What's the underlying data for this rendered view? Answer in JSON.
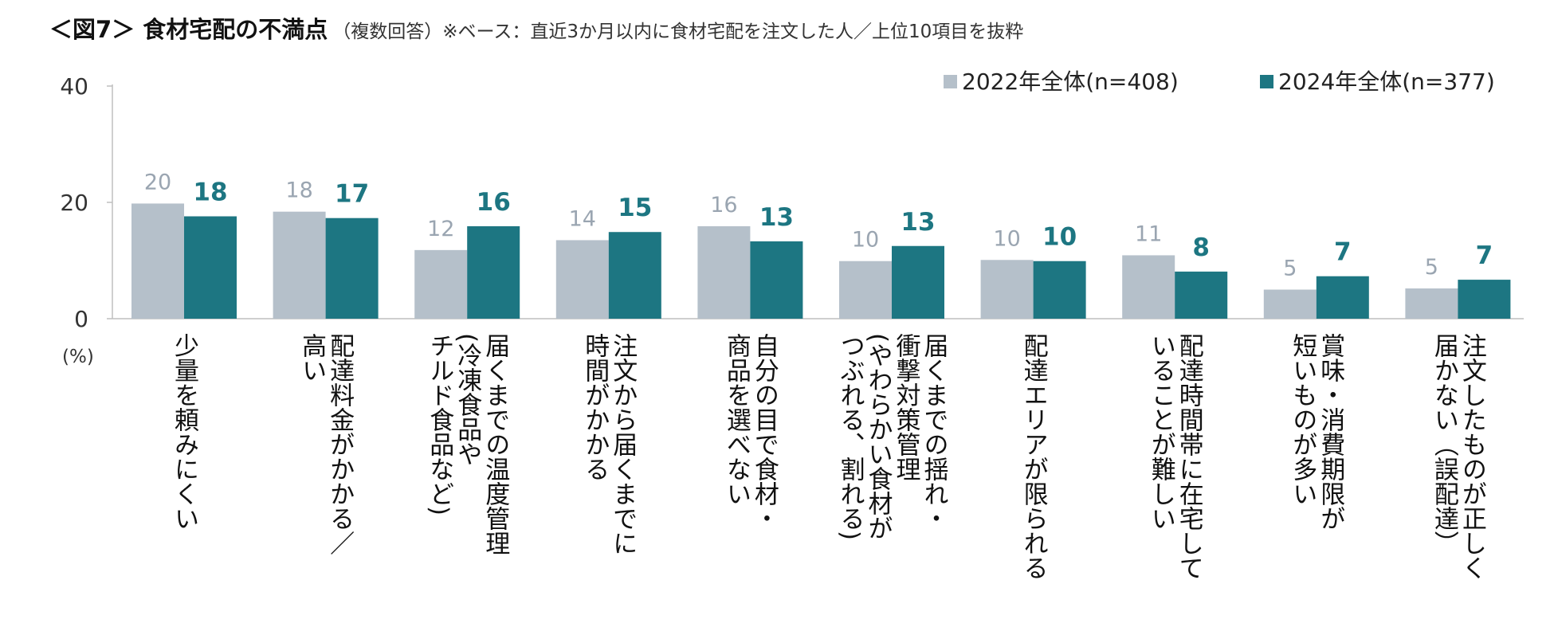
{
  "title": "＜図7＞ 食材宅配の不満点",
  "subtitle": "（複数回答）※ベース：直近3か月以内に食材宅配を注文した人／上位10項目を抜粋",
  "colors": {
    "series_2022": "#b5c0ca",
    "series_2024": "#1d7682"
  },
  "chart_data": {
    "type": "bar",
    "ylim": [
      0,
      40
    ],
    "yticks": [
      0,
      20,
      40
    ],
    "ylabel": "(%)",
    "grid": false,
    "legend": "top-right",
    "categories": [
      [
        "少量を頼みにくい"
      ],
      [
        "配達料金がかかる／",
        "高い"
      ],
      [
        "届くまでの温度管理",
        "(冷凍食品や",
        "チルド食品など)"
      ],
      [
        "注文から届くまでに",
        "時間がかかる"
      ],
      [
        "自分の目で食材・",
        "商品を選べない"
      ],
      [
        "届くまでの揺れ・",
        "衝撃対策管理",
        "(やわらかい食材が",
        "つぶれる、割れる)"
      ],
      [
        "配達エリアが限られる"
      ],
      [
        "配達時間帯に在宅して",
        "いることが難しい"
      ],
      [
        "賞味・消費期限が",
        "短いものが多い"
      ],
      [
        "注文したものが正しく",
        "届かない（誤配達）"
      ]
    ],
    "series": [
      {
        "name": "2022年全体(n=408)",
        "values": [
          20,
          18,
          12,
          14,
          16,
          10,
          10,
          11,
          5,
          5
        ]
      },
      {
        "name": "2024年全体(n=377)",
        "values": [
          18,
          17,
          16,
          15,
          13,
          13,
          10,
          8,
          7,
          7
        ]
      }
    ],
    "bar_values": [
      [
        19.8,
        18.4,
        11.8,
        13.5,
        15.9,
        9.9,
        10.1,
        10.9,
        5.0,
        5.2
      ],
      [
        17.6,
        17.3,
        15.9,
        14.9,
        13.3,
        12.5,
        9.9,
        8.1,
        7.3,
        6.7
      ]
    ]
  }
}
